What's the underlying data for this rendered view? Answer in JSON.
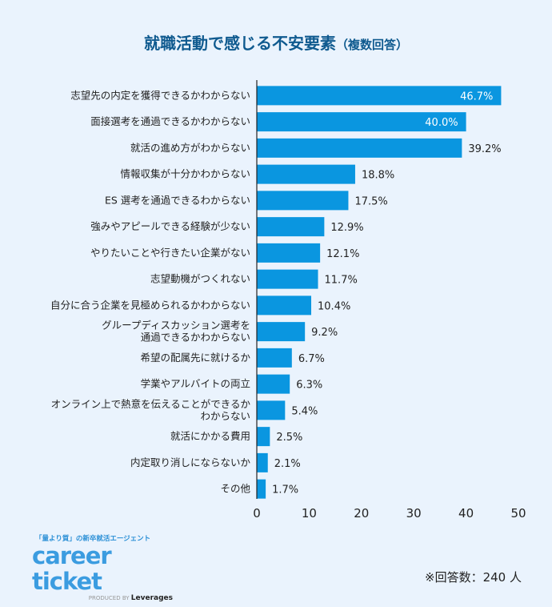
{
  "chart_data": {
    "type": "bar",
    "orientation": "horizontal",
    "title": "就職活動で感じる不安要素",
    "subtitle": "（複数回答）",
    "categories": [
      [
        "志望先の内定を獲得できるかわからない"
      ],
      [
        "面接選考を通過できるかわからない"
      ],
      [
        "就活の進め方がわからない"
      ],
      [
        "情報収集が十分かわからない"
      ],
      [
        "ES 選考を通過できるわからない"
      ],
      [
        "強みやアピールできる経験が少ない"
      ],
      [
        "やりたいことや行きたい企業がない"
      ],
      [
        "志望動機がつくれない"
      ],
      [
        "自分に合う企業を見極められるかわからない"
      ],
      [
        "グループディスカッション選考を",
        "通過できるかわからない"
      ],
      [
        "希望の配属先に就けるか"
      ],
      [
        "学業やアルバイトの両立"
      ],
      [
        "オンライン上で熱意を伝えることができるか",
        "わからない"
      ],
      [
        "就活にかかる費用"
      ],
      [
        "内定取り消しにならないか"
      ],
      [
        "その他"
      ]
    ],
    "values": [
      46.7,
      40.0,
      39.2,
      18.8,
      17.5,
      12.9,
      12.1,
      11.7,
      10.4,
      9.2,
      6.7,
      6.3,
      5.4,
      2.5,
      2.1,
      1.7
    ],
    "value_labels": [
      "46.7%",
      "40.0%",
      "39.2%",
      "18.8%",
      "17.5%",
      "12.9%",
      "12.1%",
      "11.7%",
      "10.4%",
      "9.2%",
      "6.7%",
      "6.3%",
      "5.4%",
      "2.5%",
      "2.1%",
      "1.7%"
    ],
    "xlim": [
      0,
      50
    ],
    "xticks": [
      0,
      10,
      20,
      30,
      40,
      50
    ],
    "grid": false,
    "bar_color": "#0a96e0"
  },
  "footer": {
    "tagline": "「量より質」の新卒就活エージェント",
    "brand": "career ticket",
    "produced_by": "PRODUCED BY",
    "company": "Leverages",
    "note": "※回答数：240 人"
  }
}
